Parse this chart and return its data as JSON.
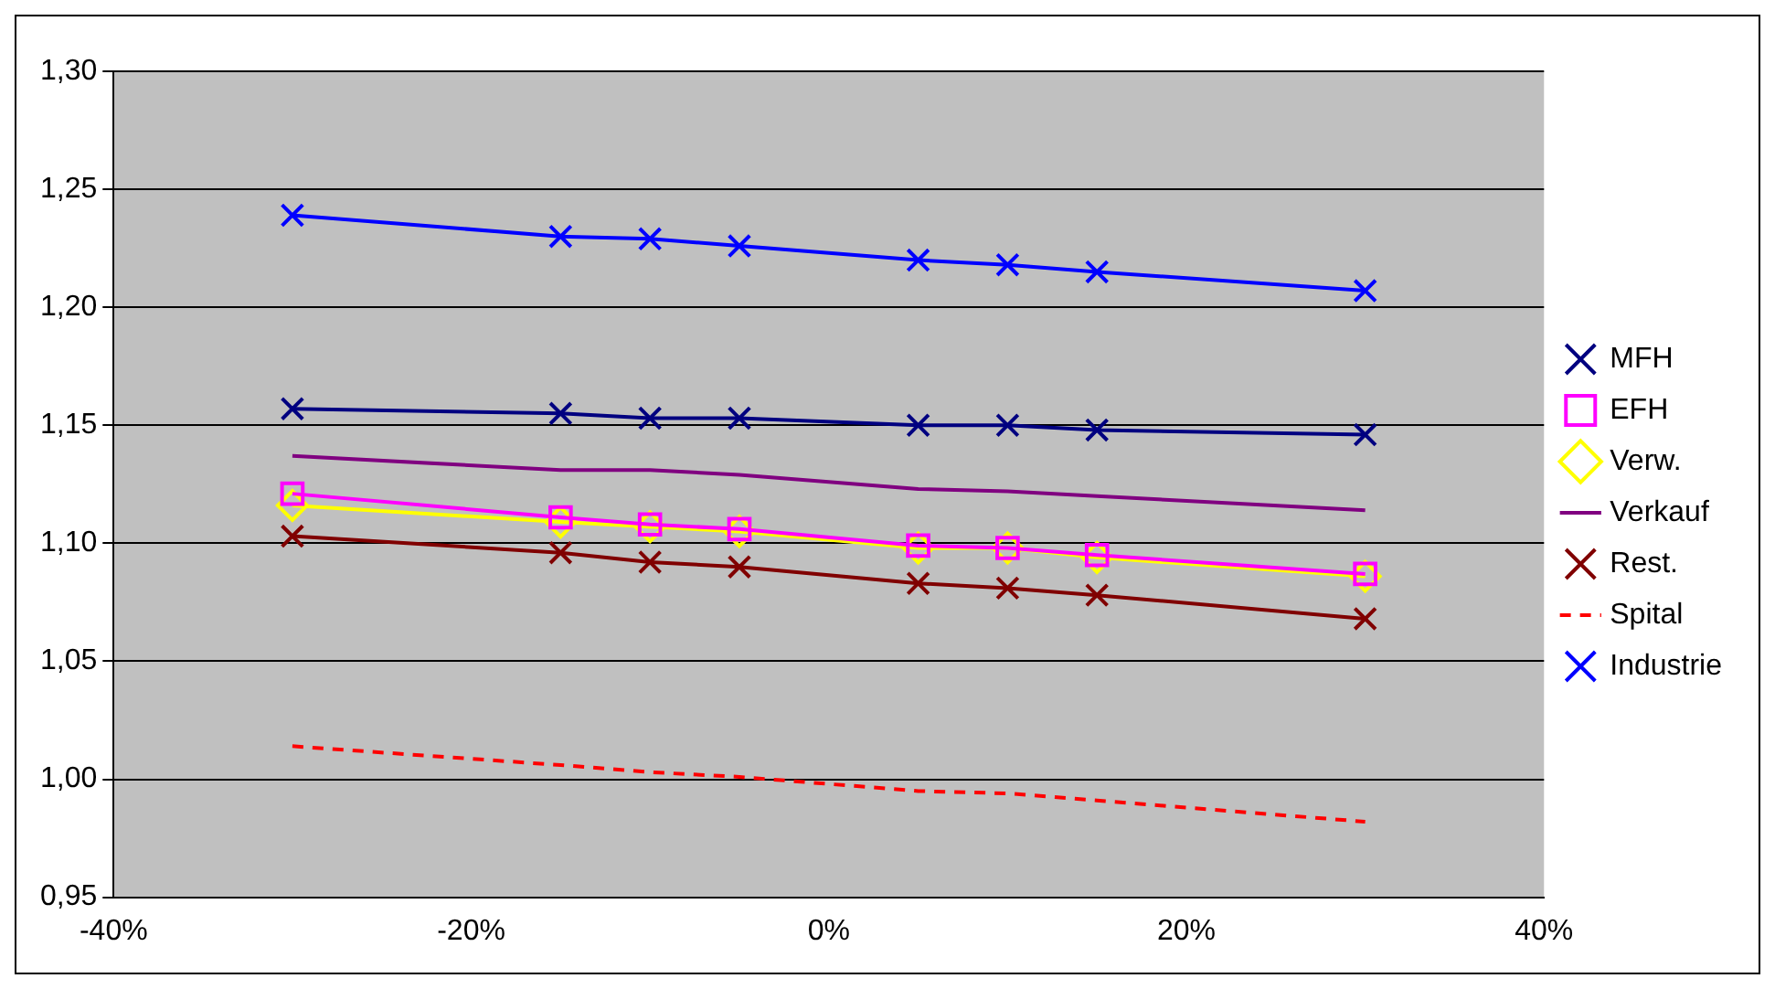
{
  "chart_data": {
    "type": "line",
    "x": [
      -30,
      -15,
      -10,
      -5,
      5,
      10,
      15,
      30
    ],
    "xlim": [
      -40,
      40
    ],
    "xticks": [
      {
        "value": -40,
        "label": "-40%"
      },
      {
        "value": -20,
        "label": "-20%"
      },
      {
        "value": 0,
        "label": "0%"
      },
      {
        "value": 20,
        "label": "20%"
      },
      {
        "value": 40,
        "label": "40%"
      }
    ],
    "ylim": [
      0.95,
      1.3
    ],
    "yticks": [
      {
        "value": 0.95,
        "label": "0,95"
      },
      {
        "value": 1.0,
        "label": "1,00"
      },
      {
        "value": 1.05,
        "label": "1,05"
      },
      {
        "value": 1.1,
        "label": "1,10"
      },
      {
        "value": 1.15,
        "label": "1,15"
      },
      {
        "value": 1.2,
        "label": "1,20"
      },
      {
        "value": 1.25,
        "label": "1,25"
      },
      {
        "value": 1.3,
        "label": "1,30"
      }
    ],
    "grid": "y",
    "legend": "right",
    "series": [
      {
        "name": "MFH",
        "color": "#000080",
        "marker": "cross",
        "values": [
          1.157,
          1.155,
          1.153,
          1.153,
          1.15,
          1.15,
          1.148,
          1.146
        ]
      },
      {
        "name": "EFH",
        "color": "#ff00ff",
        "marker": "square",
        "values": [
          1.121,
          1.111,
          1.108,
          1.106,
          1.099,
          1.098,
          1.095,
          1.087
        ]
      },
      {
        "name": "Verw.",
        "color": "#ffff00",
        "marker": "diamond",
        "values": [
          1.116,
          1.109,
          1.107,
          1.105,
          1.098,
          1.098,
          1.094,
          1.086
        ]
      },
      {
        "name": "Verkauf",
        "color": "#800080",
        "marker": "none",
        "values": [
          1.137,
          1.131,
          1.131,
          1.129,
          1.123,
          1.122,
          1.12,
          1.114
        ]
      },
      {
        "name": "Rest.",
        "color": "#800000",
        "marker": "cross",
        "values": [
          1.103,
          1.096,
          1.092,
          1.09,
          1.083,
          1.081,
          1.078,
          1.068
        ]
      },
      {
        "name": "Spital",
        "color": "#ff0000",
        "marker": "none",
        "line_style": "dashed",
        "values": [
          1.014,
          1.006,
          1.003,
          1.001,
          0.995,
          0.994,
          0.991,
          0.982
        ]
      },
      {
        "name": "Industrie",
        "color": "#0000ff",
        "marker": "cross",
        "values": [
          1.239,
          1.23,
          1.229,
          1.226,
          1.22,
          1.218,
          1.215,
          1.207
        ]
      }
    ]
  }
}
